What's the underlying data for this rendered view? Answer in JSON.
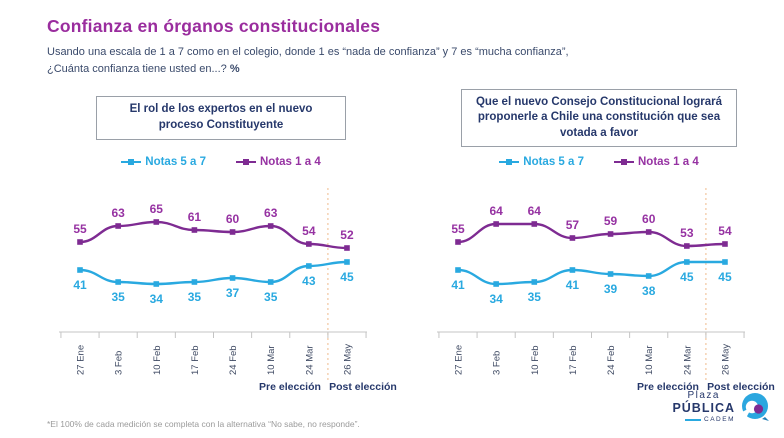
{
  "header": {
    "title": "Confianza en órganos constitucionales",
    "subtitle_line1": "Usando una escala de 1 a 7 como en el colegio, donde 1 es “nada de confianza” y 7 es “mucha confianza”,",
    "subtitle_line2": "¿Cuánta confianza tiene usted en...?",
    "subtitle_pct": "%"
  },
  "legend": {
    "series_a": "Notas 5 a 7",
    "series_b": "Notas 1 a 4"
  },
  "colors": {
    "title_purple": "#9A2D9E",
    "navy": "#26386B",
    "subtitle_text": "#3A4A6B",
    "cyan": "#29A9E0",
    "purple": "#7E2B92",
    "purple_label": "#9632A2",
    "axis_gray": "#C4C4C4",
    "tick_label": "#3F4A63",
    "divider_orange": "#F2C59E",
    "footnote_gray": "#9B9B9B"
  },
  "chart_data": [
    {
      "type": "line",
      "title": "El rol de los expertos en el nuevo proceso Constituyente",
      "categories": [
        "27 Ene",
        "3 Feb",
        "10 Feb",
        "17 Feb",
        "24 Feb",
        "10 Mar",
        "24 Mar",
        "26 May"
      ],
      "series": [
        {
          "name": "Notas 5 a 7",
          "color_key": "cyan",
          "label_pos": "below",
          "values": [
            41,
            35,
            34,
            35,
            37,
            35,
            43,
            45
          ]
        },
        {
          "name": "Notas 1 a 4",
          "color_key": "purple",
          "label_pos": "above",
          "values": [
            55,
            63,
            65,
            61,
            60,
            63,
            54,
            52
          ]
        }
      ],
      "pre_label": "Pre elección",
      "post_label": "Post elección",
      "divider_after_index": 6,
      "ylim": [
        30,
        70
      ],
      "legend_position": "top",
      "grid": false
    },
    {
      "type": "line",
      "title": "Que el nuevo Consejo Constitucional logrará proponerle a Chile una constitución que sea votada a favor",
      "categories": [
        "27 Ene",
        "3 Feb",
        "10 Feb",
        "17 Feb",
        "24 Feb",
        "10 Mar",
        "24 Mar",
        "26 May"
      ],
      "series": [
        {
          "name": "Notas 5 a 7",
          "color_key": "cyan",
          "label_pos": "below",
          "values": [
            41,
            34,
            35,
            41,
            39,
            38,
            45,
            45
          ]
        },
        {
          "name": "Notas 1 a 4",
          "color_key": "purple",
          "label_pos": "above",
          "values": [
            55,
            64,
            64,
            57,
            59,
            60,
            53,
            54
          ]
        }
      ],
      "pre_label": "Pre elección",
      "post_label": "Post elección",
      "divider_after_index": 6,
      "ylim": [
        30,
        70
      ],
      "legend_position": "top",
      "grid": false
    }
  ],
  "footnote": "*El 100% de cada medición se completa con la alternativa “No sabe, no responde”.",
  "logo": {
    "top": "Plaza",
    "main": "PÚBLICA",
    "sub": "CADEM"
  }
}
